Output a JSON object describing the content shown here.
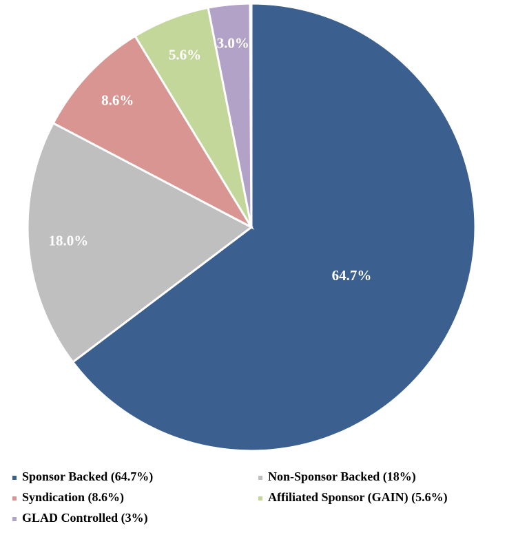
{
  "chart_data": {
    "type": "pie",
    "categories": [
      "Sponsor Backed (64.7%)",
      "Non-Sponsor Backed (18%)",
      "Syndication (8.6%)",
      "Affiliated Sponsor (GAIN) (5.6%)",
      "GLAD Controlled (3%)"
    ],
    "values": [
      64.7,
      18,
      8.6,
      5.6,
      3
    ],
    "value_labels": [
      "64.7%",
      "18.0%",
      "8.6%",
      "5.6%",
      "3.0%"
    ],
    "colors": [
      "#3b5f8e",
      "#bfbfbf",
      "#d99592",
      "#c4d79b",
      "#b3a2c7"
    ],
    "legend": "bottom"
  }
}
